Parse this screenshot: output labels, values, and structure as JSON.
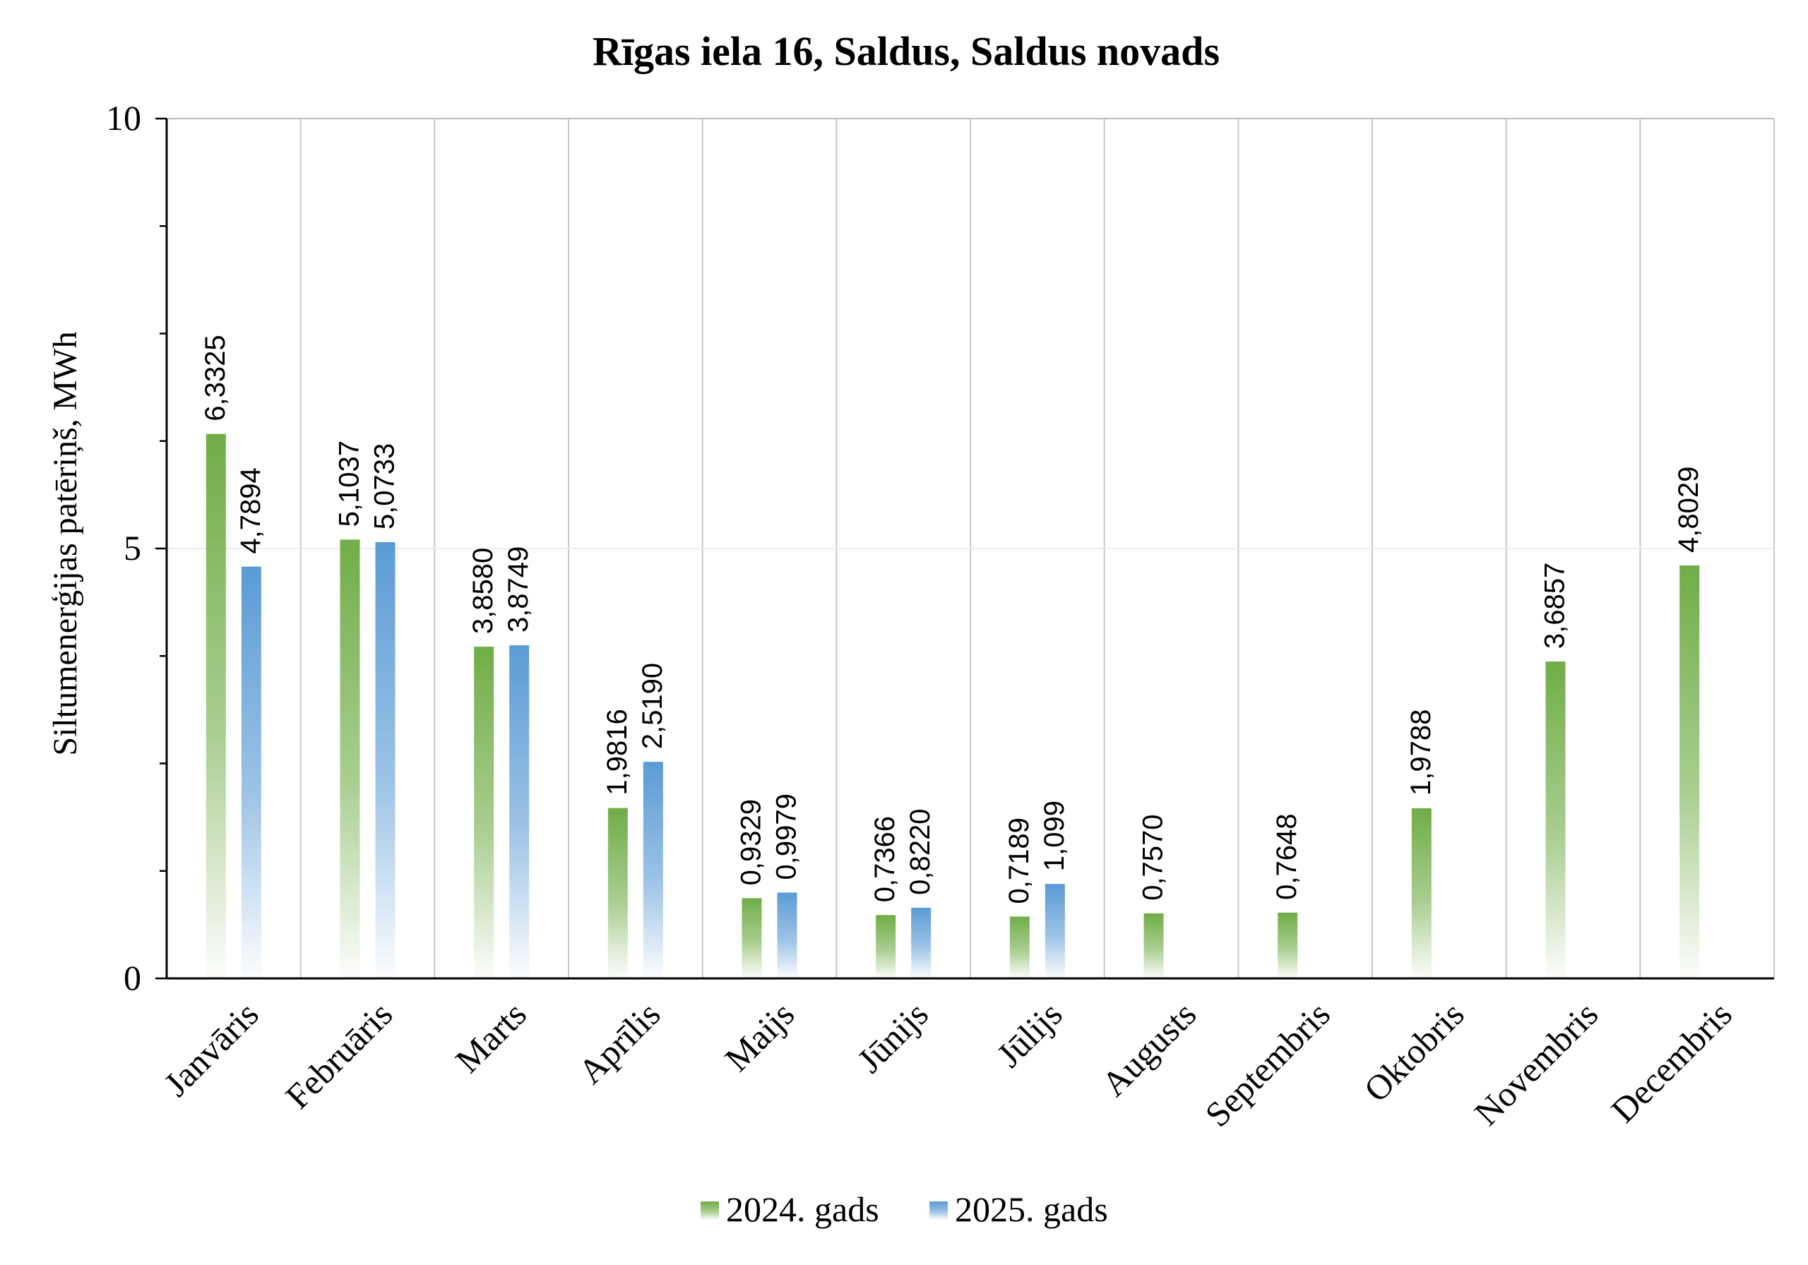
{
  "chart_data": {
    "type": "bar",
    "title": "Rīgas iela 16, Saldus, Saldus novads",
    "xlabel": "",
    "ylabel": "Siltumenerģijas patēriņš, MWh",
    "ylim": [
      0,
      10
    ],
    "yticks": [
      0,
      5,
      10
    ],
    "grid": true,
    "legend_position": "bottom",
    "categories": [
      "Janvāris",
      "Februāris",
      "Marts",
      "Aprīlis",
      "Maijs",
      "Jūnijs",
      "Jūlijs",
      "Augusts",
      "Septembris",
      "Oktobris",
      "Novembris",
      "Decembris"
    ],
    "series": [
      {
        "name": "2024. gads",
        "color": "#70ad47",
        "values": [
          6.3325,
          5.1037,
          3.858,
          1.9816,
          0.9329,
          0.7366,
          0.7189,
          0.757,
          0.7648,
          1.9788,
          3.6857,
          4.8029
        ],
        "labels": [
          "6,3325",
          "5,1037",
          "3,8580",
          "1,9816",
          "0,9329",
          "0,7366",
          "0,7189",
          "0,7570",
          "0,7648",
          "1,9788",
          "3,6857",
          "4,8029"
        ]
      },
      {
        "name": "2025. gads",
        "color": "#5b9bd5",
        "values": [
          4.7894,
          5.0733,
          3.8749,
          2.519,
          0.9979,
          0.822,
          1.099,
          null,
          null,
          null,
          null,
          null
        ],
        "labels": [
          "4,7894",
          "5,0733",
          "3,8749",
          "2,5190",
          "0,9979",
          "0,8220",
          "1,099",
          "",
          "",
          "",
          "",
          ""
        ]
      }
    ]
  }
}
